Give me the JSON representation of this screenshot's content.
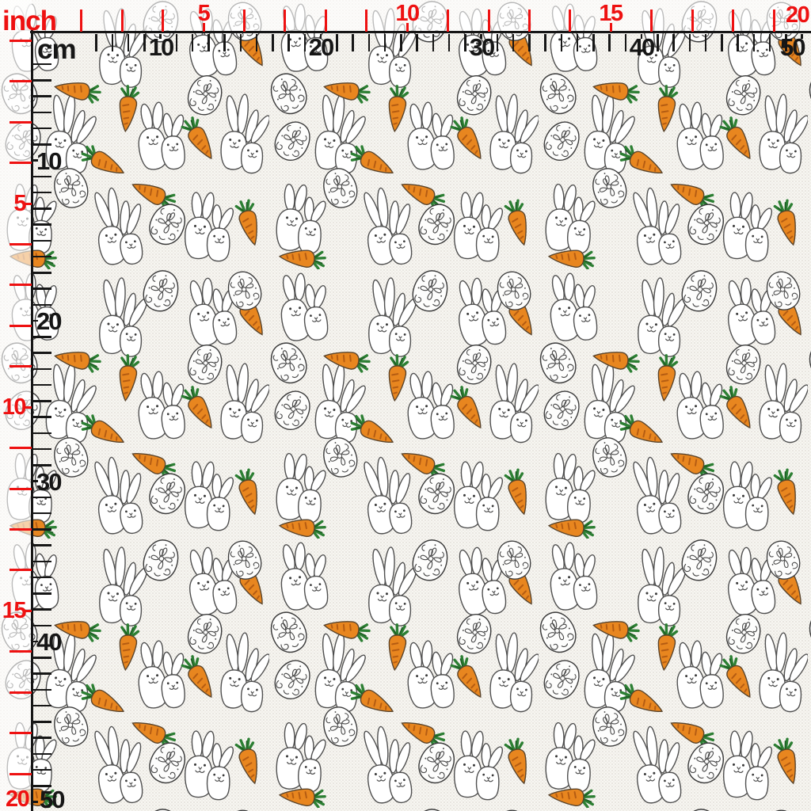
{
  "rulers": {
    "unit_labels": {
      "inch": "inch",
      "cm": "cm"
    },
    "top": {
      "inch_numbers": [
        "5",
        "10",
        "15",
        "20"
      ],
      "cm_numbers": [
        "10",
        "20",
        "30",
        "40",
        "50"
      ]
    },
    "left": {
      "inch_numbers": [
        "5",
        "10",
        "15",
        "20"
      ],
      "cm_numbers": [
        "10",
        "20",
        "30",
        "40",
        "50"
      ]
    }
  },
  "colors": {
    "inch_red": "#ee1111",
    "cm_black": "#161616",
    "carrot_orange": "#e8861f",
    "carrot_stripe": "#b55c12",
    "carrot_outline": "#59442c",
    "leaf_green": "#2c7f33",
    "leaf_green_dark": "#1d5f24",
    "bunny_outline": "#4f4f4f",
    "egg_outline": "#3c3c3c",
    "fabric_white": "#f7f6f2"
  },
  "pattern_motifs": [
    "bunny-pair",
    "carrot",
    "decorated-egg"
  ]
}
